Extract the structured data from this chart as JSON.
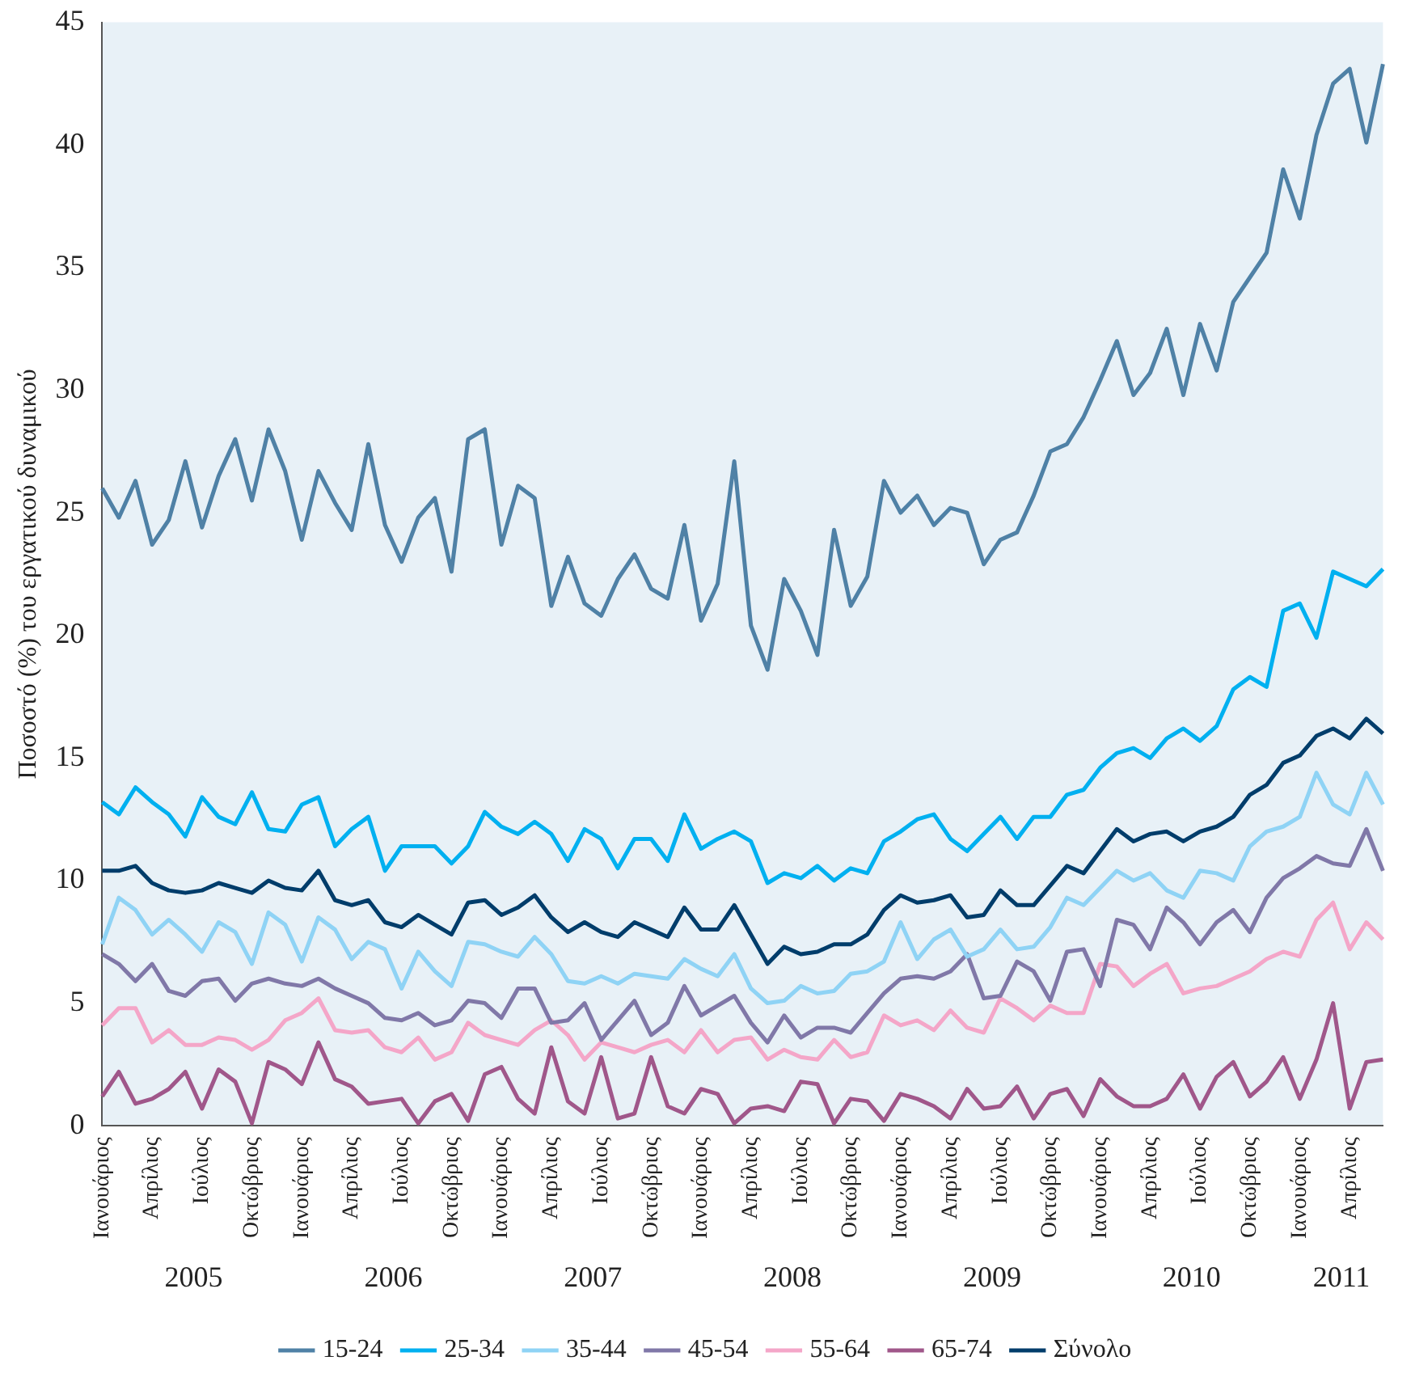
{
  "chart_data": {
    "type": "line",
    "ylabel": "Ποσοστό (%) του εργατικού δυναμικού",
    "ylim": [
      0,
      45
    ],
    "yticks": [
      0,
      5,
      10,
      15,
      20,
      25,
      30,
      35,
      40,
      45
    ],
    "grid": false,
    "legend": "bottom",
    "marker": "none",
    "line_style": "solid",
    "categories": [
      "Ιανουάριος",
      null,
      null,
      "Απρίλιος",
      null,
      null,
      "Ιούλιος",
      null,
      null,
      "Οκτώβριος",
      null,
      null,
      "Ιανουάριος",
      null,
      null,
      "Απρίλιος",
      null,
      null,
      "Ιούλιος",
      null,
      null,
      "Οκτώβριος",
      null,
      null,
      "Ιανουάριος",
      null,
      null,
      "Απρίλιος",
      null,
      null,
      "Ιούλιος",
      null,
      null,
      "Οκτώβριος",
      null,
      null,
      "Ιανουάριος",
      null,
      null,
      "Απρίλιος",
      null,
      null,
      "Ιούλιος",
      null,
      null,
      "Οκτώβριος",
      null,
      null,
      "Ιανουάριος",
      null,
      null,
      "Απρίλιος",
      null,
      null,
      "Ιούλιος",
      null,
      null,
      "Οκτώβριος",
      null,
      null,
      "Ιανουάριος",
      null,
      null,
      "Απρίλιος",
      null,
      null,
      "Ιούλιος",
      null,
      null,
      "Οκτώβριος",
      null,
      null,
      "Ιανουάριος",
      null,
      null,
      "Απρίλιος",
      null,
      null
    ],
    "annotations": [
      "2005",
      "2006",
      "2007",
      "2008",
      "2009",
      "2010",
      "2011"
    ],
    "series": [
      {
        "name": "15-24",
        "color": "#4f81a6",
        "values": [
          26.0,
          24.8,
          26.3,
          23.7,
          24.7,
          27.1,
          24.4,
          26.5,
          28.0,
          25.5,
          28.4,
          26.7,
          23.9,
          26.7,
          25.4,
          24.3,
          27.8,
          24.5,
          23.0,
          24.8,
          25.6,
          22.6,
          28.0,
          28.4,
          23.7,
          26.1,
          25.6,
          21.2,
          23.2,
          21.3,
          20.8,
          22.3,
          23.3,
          21.9,
          21.5,
          24.5,
          20.6,
          22.1,
          27.1,
          20.4,
          18.6,
          22.3,
          21.0,
          19.2,
          24.3,
          21.2,
          22.4,
          26.3,
          25.0,
          25.7,
          24.5,
          25.2,
          25.0,
          22.9,
          23.9,
          24.2,
          25.7,
          27.5,
          27.8,
          28.9,
          30.4,
          32.0,
          29.8,
          30.7,
          32.5,
          29.8,
          32.7,
          30.8,
          33.6,
          34.6,
          35.6,
          39.0,
          37.0,
          40.4,
          42.5,
          43.1,
          40.1,
          43.3
        ]
      },
      {
        "name": "25-34",
        "color": "#00b0f0",
        "values": [
          13.2,
          12.7,
          13.8,
          13.2,
          12.7,
          11.8,
          13.4,
          12.6,
          12.3,
          13.6,
          12.1,
          12.0,
          13.1,
          13.4,
          11.4,
          12.1,
          12.6,
          10.4,
          11.4,
          11.4,
          11.4,
          10.7,
          11.4,
          12.8,
          12.2,
          11.9,
          12.4,
          11.9,
          10.8,
          12.1,
          11.7,
          10.5,
          11.7,
          11.7,
          10.8,
          12.7,
          11.3,
          11.7,
          12.0,
          11.6,
          9.9,
          10.3,
          10.1,
          10.6,
          10.0,
          10.5,
          10.3,
          11.6,
          12.0,
          12.5,
          12.7,
          11.7,
          11.2,
          11.9,
          12.6,
          11.7,
          12.6,
          12.6,
          13.5,
          13.7,
          14.6,
          15.2,
          15.4,
          15.0,
          15.8,
          16.2,
          15.7,
          16.3,
          17.8,
          18.3,
          17.9,
          21.0,
          21.3,
          19.9,
          22.6,
          22.3,
          22.0,
          22.7
        ]
      },
      {
        "name": "35-44",
        "color": "#8fd3f5",
        "values": [
          7.4,
          9.3,
          8.8,
          7.8,
          8.4,
          7.8,
          7.1,
          8.3,
          7.9,
          6.6,
          8.7,
          8.2,
          6.7,
          8.5,
          8.0,
          6.8,
          7.5,
          7.2,
          5.6,
          7.1,
          6.3,
          5.7,
          7.5,
          7.4,
          7.1,
          6.9,
          7.7,
          7.0,
          5.9,
          5.8,
          6.1,
          5.8,
          6.2,
          6.1,
          6.0,
          6.8,
          6.4,
          6.1,
          7.0,
          5.6,
          5.0,
          5.1,
          5.7,
          5.4,
          5.5,
          6.2,
          6.3,
          6.7,
          8.3,
          6.8,
          7.6,
          8.0,
          6.9,
          7.2,
          8.0,
          7.2,
          7.3,
          8.1,
          9.3,
          9.0,
          9.7,
          10.4,
          10.0,
          10.3,
          9.6,
          9.3,
          10.4,
          10.3,
          10.0,
          11.4,
          12.0,
          12.2,
          12.6,
          14.4,
          13.1,
          12.7,
          14.4,
          13.1
        ]
      },
      {
        "name": "45-54",
        "color": "#8078a8",
        "values": [
          7.0,
          6.6,
          5.9,
          6.6,
          5.5,
          5.3,
          5.9,
          6.0,
          5.1,
          5.8,
          6.0,
          5.8,
          5.7,
          6.0,
          5.6,
          5.3,
          5.0,
          4.4,
          4.3,
          4.6,
          4.1,
          4.3,
          5.1,
          5.0,
          4.4,
          5.6,
          5.6,
          4.2,
          4.3,
          5.0,
          3.5,
          4.3,
          5.1,
          3.7,
          4.2,
          5.7,
          4.5,
          4.9,
          5.3,
          4.2,
          3.4,
          4.5,
          3.6,
          4.0,
          4.0,
          3.8,
          4.6,
          5.4,
          6.0,
          6.1,
          6.0,
          6.3,
          7.0,
          5.2,
          5.3,
          6.7,
          6.3,
          5.1,
          7.1,
          7.2,
          5.7,
          8.4,
          8.2,
          7.2,
          8.9,
          8.3,
          7.4,
          8.3,
          8.8,
          7.9,
          9.3,
          10.1,
          10.5,
          11.0,
          10.7,
          10.6,
          12.1,
          10.4
        ]
      },
      {
        "name": "55-64",
        "color": "#f4a6c8",
        "values": [
          4.1,
          4.8,
          4.8,
          3.4,
          3.9,
          3.3,
          3.3,
          3.6,
          3.5,
          3.1,
          3.5,
          4.3,
          4.6,
          5.2,
          3.9,
          3.8,
          3.9,
          3.2,
          3.0,
          3.6,
          2.7,
          3.0,
          4.2,
          3.7,
          3.5,
          3.3,
          3.9,
          4.3,
          3.7,
          2.7,
          3.4,
          3.2,
          3.0,
          3.3,
          3.5,
          3.0,
          3.9,
          3.0,
          3.5,
          3.6,
          2.7,
          3.1,
          2.8,
          2.7,
          3.5,
          2.8,
          3.0,
          4.5,
          4.1,
          4.3,
          3.9,
          4.7,
          4.0,
          3.8,
          5.2,
          4.8,
          4.3,
          4.9,
          4.6,
          4.6,
          6.6,
          6.5,
          5.7,
          6.2,
          6.6,
          5.4,
          5.6,
          5.7,
          6.0,
          6.3,
          6.8,
          7.1,
          6.9,
          8.4,
          9.1,
          7.2,
          8.3,
          7.6
        ]
      },
      {
        "name": "65-74",
        "color": "#a0578a",
        "values": [
          1.2,
          2.2,
          0.9,
          1.1,
          1.5,
          2.2,
          0.7,
          2.3,
          1.8,
          0.1,
          2.6,
          2.3,
          1.7,
          3.4,
          1.9,
          1.6,
          0.9,
          1.0,
          1.1,
          0.1,
          1.0,
          1.3,
          0.2,
          2.1,
          2.4,
          1.1,
          0.5,
          3.2,
          1.0,
          0.5,
          2.8,
          0.3,
          0.5,
          2.8,
          0.8,
          0.5,
          1.5,
          1.3,
          0.1,
          0.7,
          0.8,
          0.6,
          1.8,
          1.7,
          0.1,
          1.1,
          1.0,
          0.2,
          1.3,
          1.1,
          0.8,
          0.3,
          1.5,
          0.7,
          0.8,
          1.6,
          0.3,
          1.3,
          1.5,
          0.4,
          1.9,
          1.2,
          0.8,
          0.8,
          1.1,
          2.1,
          0.7,
          2.0,
          2.6,
          1.2,
          1.8,
          2.8,
          1.1,
          2.7,
          5.0,
          0.7,
          2.6,
          2.7
        ]
      },
      {
        "name": "Σύνολο",
        "color": "#003d6b",
        "values": [
          10.4,
          10.4,
          10.6,
          9.9,
          9.6,
          9.5,
          9.6,
          9.9,
          9.7,
          9.5,
          10.0,
          9.7,
          9.6,
          10.4,
          9.2,
          9.0,
          9.2,
          8.3,
          8.1,
          8.6,
          8.2,
          7.8,
          9.1,
          9.2,
          8.6,
          8.9,
          9.4,
          8.5,
          7.9,
          8.3,
          7.9,
          7.7,
          8.3,
          8.0,
          7.7,
          8.9,
          8.0,
          8.0,
          9.0,
          7.8,
          6.6,
          7.3,
          7.0,
          7.1,
          7.4,
          7.4,
          7.8,
          8.8,
          9.4,
          9.1,
          9.2,
          9.4,
          8.5,
          8.6,
          9.6,
          9.0,
          9.0,
          9.8,
          10.6,
          10.3,
          11.2,
          12.1,
          11.6,
          11.9,
          12.0,
          11.6,
          12.0,
          12.2,
          12.6,
          13.5,
          13.9,
          14.8,
          15.1,
          15.9,
          16.2,
          15.8,
          16.6,
          16.0
        ]
      }
    ]
  }
}
